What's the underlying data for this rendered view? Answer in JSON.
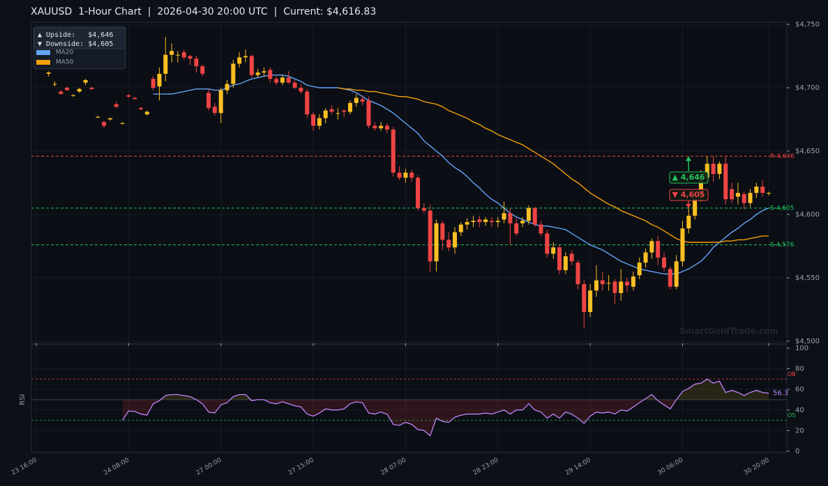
{
  "chart_data": [
    {
      "type": "candlestick",
      "title": "XAUUSD  1-Hour Chart  |  2026-04-30 20:00 UTC  |  Current: $4,616.83",
      "ylim": [
        4500,
        4750
      ],
      "yticks": [
        {
          "value": 4500,
          "label": "$4,500"
        },
        {
          "value": 4550,
          "label": "$4,550"
        },
        {
          "value": 4600,
          "label": "$4,600"
        },
        {
          "value": 4650,
          "label": "$4,650"
        },
        {
          "value": 4700,
          "label": "$4,700"
        },
        {
          "value": 4750,
          "label": "$4,750"
        }
      ],
      "grid": true,
      "legend": "upper left",
      "up_color": "#fbbf24",
      "down_color": "#ef4444",
      "open": [
        null,
        null,
        4711,
        4703,
        4697,
        4700,
        4694,
        4697,
        4704,
        4700,
        4677,
        4673,
        4675,
        4687,
        4672,
        4694,
        4692,
        4684,
        4679,
        4707,
        4701,
        4711,
        4726,
        4726,
        4728,
        4725,
        4723,
        4717,
        4696,
        4685,
        4680,
        4698,
        4703,
        4719,
        4724,
        4725,
        4710,
        4712,
        4714,
        4707,
        4704,
        4708,
        4704,
        4700,
        4697,
        4679,
        4670,
        4676,
        4683,
        4680,
        4682,
        4681,
        4688,
        4691,
        4690,
        4670,
        4668,
        4670,
        4667,
        4633,
        4629,
        4633,
        4629,
        4605,
        4603,
        4563,
        4593,
        4580,
        4574,
        4586,
        4592,
        4594,
        4596,
        4594,
        4595,
        4594,
        4596,
        4601,
        4593,
        4593,
        4595,
        4605,
        4592,
        4585,
        4569,
        4574,
        4556,
        4569,
        4562,
        4545,
        4523,
        4540,
        4548,
        4546,
        4547,
        4538,
        4547,
        4543,
        4552,
        4562,
        4570,
        4579,
        4566,
        4557,
        4543,
        4563,
        4589,
        4599,
        4613,
        4629,
        4640,
        4632,
        4640,
        4620,
        4614,
        4616,
        4609,
        4617,
        4622,
        4617
      ],
      "high": [
        null,
        null,
        4713,
        4705,
        4698,
        4701,
        4695,
        4700,
        4707,
        4701,
        4678,
        4674,
        4676,
        4689,
        4673,
        4695,
        4693,
        4685,
        4682,
        4709,
        4716,
        4740,
        4735,
        4729,
        4730,
        4726,
        4725,
        4718,
        4699,
        4688,
        4700,
        4706,
        4722,
        4728,
        4730,
        4726,
        4715,
        4716,
        4716,
        4709,
        4710,
        4713,
        4706,
        4703,
        4699,
        4681,
        4679,
        4684,
        4686,
        4684,
        4683,
        4690,
        4695,
        4694,
        4693,
        4673,
        4673,
        4672,
        4669,
        4638,
        4636,
        4635,
        4631,
        4609,
        4608,
        4596,
        4595,
        4586,
        4590,
        4594,
        4597,
        4599,
        4599,
        4598,
        4598,
        4598,
        4610,
        4605,
        4597,
        4598,
        4607,
        4606,
        4595,
        4588,
        4578,
        4576,
        4570,
        4572,
        4564,
        4548,
        4545,
        4560,
        4555,
        4552,
        4549,
        4557,
        4550,
        4555,
        4566,
        4573,
        4581,
        4583,
        4570,
        4559,
        4568,
        4595,
        4606,
        4618,
        4635,
        4646,
        4646,
        4642,
        4646,
        4625,
        4625,
        4618,
        4620,
        4625,
        4627,
        4618
      ],
      "low": [
        null,
        null,
        4709,
        4701,
        4695,
        4698,
        4693,
        4696,
        4702,
        4698,
        4676,
        4668,
        4674,
        4684,
        4671,
        4692,
        4691,
        4682,
        4678,
        4698,
        4690,
        4705,
        4720,
        4720,
        4722,
        4718,
        4712,
        4709,
        4682,
        4678,
        4672,
        4695,
        4700,
        4716,
        4720,
        4708,
        4708,
        4709,
        4704,
        4702,
        4702,
        4703,
        4699,
        4695,
        4676,
        4666,
        4667,
        4672,
        4679,
        4675,
        4677,
        4679,
        4685,
        4686,
        4668,
        4666,
        4666,
        4664,
        4630,
        4627,
        4625,
        4626,
        4603,
        4601,
        4555,
        4555,
        4572,
        4571,
        4569,
        4583,
        4588,
        4590,
        4590,
        4591,
        4590,
        4590,
        4593,
        4576,
        4583,
        4590,
        4592,
        4590,
        4583,
        4566,
        4565,
        4553,
        4553,
        4560,
        4541,
        4510,
        4519,
        4535,
        4540,
        4540,
        4529,
        4532,
        4539,
        4540,
        4549,
        4558,
        4565,
        4560,
        4555,
        4541,
        4541,
        4559,
        4585,
        4596,
        4610,
        4625,
        4626,
        4628,
        4608,
        4609,
        4608,
        4604,
        4606,
        4613,
        4614,
        4615
      ],
      "close": [
        null,
        null,
        4712,
        4703,
        4695,
        4698,
        4694,
        4699,
        4706,
        4699,
        4677,
        4670,
        4676,
        4685,
        4672,
        4693,
        4691,
        4683,
        4681,
        4700,
        4711,
        4726,
        4729,
        4726,
        4724,
        4723,
        4717,
        4711,
        4684,
        4680,
        4698,
        4703,
        4719,
        4724,
        4725,
        4710,
        4712,
        4713,
        4707,
        4704,
        4708,
        4704,
        4700,
        4697,
        4679,
        4670,
        4676,
        4682,
        4681,
        4680,
        4681,
        4688,
        4692,
        4689,
        4670,
        4668,
        4670,
        4667,
        4633,
        4629,
        4633,
        4629,
        4605,
        4603,
        4563,
        4593,
        4580,
        4574,
        4586,
        4592,
        4594,
        4595,
        4594,
        4596,
        4594,
        4595,
        4601,
        4593,
        4585,
        4595,
        4605,
        4592,
        4585,
        4569,
        4574,
        4556,
        4567,
        4563,
        4545,
        4523,
        4540,
        4548,
        4545,
        4546,
        4538,
        4547,
        4544,
        4551,
        4562,
        4570,
        4579,
        4566,
        4558,
        4543,
        4563,
        4589,
        4599,
        4613,
        4629,
        4640,
        4632,
        4640,
        4612,
        4612,
        4617,
        4609,
        4617,
        4622,
        4617,
        4617
      ],
      "series": [
        {
          "name": "MA20",
          "color": "#60a5fa",
          "values": [
            null,
            null,
            null,
            null,
            null,
            null,
            null,
            null,
            null,
            null,
            null,
            null,
            null,
            null,
            null,
            null,
            null,
            null,
            null,
            4695,
            4695,
            4695,
            4695,
            4696,
            4697,
            4698,
            4699,
            4699,
            4699,
            4698,
            4698,
            4700,
            4702,
            4703,
            4705,
            4707,
            4708,
            4709,
            4710,
            4710,
            4710,
            4709,
            4707,
            4705,
            4702,
            4701,
            4700,
            4700,
            4700,
            4700,
            4699,
            4698,
            4696,
            4693,
            4690,
            4688,
            4686,
            4683,
            4680,
            4676,
            4672,
            4668,
            4664,
            4658,
            4654,
            4650,
            4646,
            4641,
            4637,
            4634,
            4630,
            4625,
            4621,
            4616,
            4612,
            4609,
            4605,
            4601,
            4598,
            4596,
            4594,
            4592,
            4591,
            4591,
            4590,
            4589,
            4588,
            4585,
            4582,
            4579,
            4576,
            4574,
            4572,
            4569,
            4566,
            4563,
            4561,
            4559,
            4557,
            4556,
            4555,
            4554,
            4553,
            4553,
            4553,
            4555,
            4557,
            4560,
            4563,
            4568,
            4574,
            4578,
            4582,
            4586,
            4589,
            4593,
            4596,
            4600,
            4603,
            4605
          ]
        },
        {
          "name": "MA50",
          "color": "#f59e0b",
          "values": [
            null,
            null,
            null,
            null,
            null,
            null,
            null,
            null,
            null,
            null,
            null,
            null,
            null,
            null,
            null,
            null,
            null,
            null,
            null,
            null,
            null,
            null,
            null,
            null,
            null,
            null,
            null,
            null,
            null,
            null,
            null,
            null,
            null,
            null,
            null,
            null,
            null,
            null,
            null,
            null,
            null,
            null,
            null,
            null,
            null,
            null,
            null,
            null,
            null,
            4700,
            4699,
            4699,
            4698,
            4698,
            4697,
            4697,
            4696,
            4695,
            4694,
            4693,
            4693,
            4692,
            4691,
            4689,
            4688,
            4687,
            4685,
            4682,
            4680,
            4678,
            4676,
            4673,
            4671,
            4668,
            4666,
            4663,
            4661,
            4659,
            4657,
            4655,
            4652,
            4649,
            4646,
            4643,
            4640,
            4636,
            4632,
            4628,
            4625,
            4621,
            4617,
            4614,
            4611,
            4608,
            4606,
            4603,
            4601,
            4599,
            4597,
            4595,
            4592,
            4590,
            4587,
            4584,
            4581,
            4579,
            4578,
            4578,
            4578,
            4578,
            4578,
            4578,
            4579,
            4579,
            4580,
            4580,
            4581,
            4582,
            4583,
            4583
          ]
        }
      ],
      "levels": [
        {
          "label": "R 4,646",
          "value": 4646,
          "color": "#ef4444"
        },
        {
          "label": "S 4,605",
          "value": 4605,
          "color": "#22c55e"
        },
        {
          "label": "S 4,576",
          "value": 4576,
          "color": "#22c55e"
        }
      ],
      "annotations": [
        {
          "label": "▲ 4,646",
          "value": 4646,
          "color": "#22c55e",
          "direction": "up"
        },
        {
          "label": "▼ 4,605",
          "value": 4605,
          "color": "#ef4444",
          "direction": "down"
        }
      ],
      "info_box": [
        "▲ Upside:   $4,646",
        "▼ Downside: $4,605"
      ],
      "watermark": "SmartGoldTrade.com"
    },
    {
      "type": "line",
      "ylabel": "RSI",
      "color": "#c084fc",
      "ylim": [
        0,
        100
      ],
      "yticks": [
        0,
        20,
        40,
        60,
        80,
        100
      ],
      "midline": 50,
      "ob": {
        "value": 70,
        "label": "OB",
        "color": "#ef4444"
      },
      "os": {
        "value": 30,
        "label": "OS",
        "color": "#22c55e"
      },
      "categories": [
        "23 16:00",
        null,
        null,
        null,
        null,
        null,
        null,
        null,
        null,
        null,
        null,
        null,
        null,
        null,
        null,
        "24 08:00",
        null,
        null,
        null,
        null,
        null,
        null,
        null,
        null,
        null,
        null,
        null,
        null,
        null,
        null,
        "27 00:00",
        null,
        null,
        null,
        null,
        null,
        null,
        null,
        null,
        null,
        null,
        null,
        null,
        null,
        null,
        "27 15:00",
        null,
        null,
        null,
        null,
        null,
        null,
        null,
        null,
        null,
        null,
        null,
        null,
        null,
        null,
        "28 07:00",
        null,
        null,
        null,
        null,
        null,
        null,
        null,
        null,
        null,
        null,
        null,
        null,
        null,
        null,
        "28 23:00",
        null,
        null,
        null,
        null,
        null,
        null,
        null,
        null,
        null,
        null,
        null,
        null,
        null,
        null,
        "29 14:00",
        null,
        null,
        null,
        null,
        null,
        null,
        null,
        null,
        null,
        null,
        null,
        null,
        null,
        null,
        "30 06:00",
        null,
        null,
        null,
        null,
        null,
        null,
        null,
        null,
        null,
        null,
        null,
        null,
        null,
        "30 20:00"
      ],
      "values": [
        null,
        null,
        null,
        null,
        null,
        null,
        null,
        null,
        null,
        null,
        null,
        null,
        null,
        null,
        30,
        39,
        38.5,
        36,
        35,
        46,
        49,
        54,
        55,
        55,
        54,
        53,
        50,
        46,
        38,
        37,
        45,
        47,
        53,
        55,
        55,
        49,
        50,
        50,
        47,
        46,
        48,
        46,
        44,
        43,
        36,
        34,
        37,
        41,
        40,
        40,
        41,
        46,
        48,
        47,
        37,
        36,
        38,
        36,
        26,
        25,
        28,
        26,
        21,
        20,
        15,
        32,
        29,
        28,
        33,
        35,
        36,
        36,
        36,
        37,
        36,
        38,
        40,
        36,
        40,
        40,
        46,
        40,
        38,
        32,
        36,
        32,
        38,
        36,
        32,
        27,
        34,
        38,
        37,
        38,
        36,
        40,
        39,
        43,
        47,
        51,
        55,
        49,
        45,
        41,
        50,
        58,
        61,
        65,
        66,
        70,
        66,
        68,
        57,
        59,
        57,
        54,
        57,
        59,
        57,
        56.3
      ]
    }
  ]
}
